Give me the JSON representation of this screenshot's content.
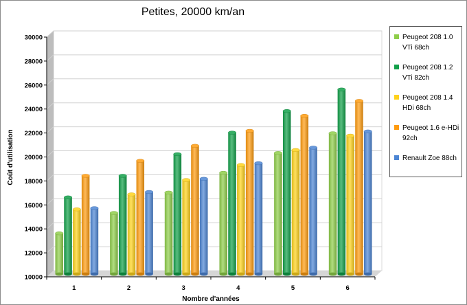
{
  "chart_data": {
    "type": "bar",
    "title": "Petites, 20000 km/an",
    "xlabel": "Nombre d'années",
    "ylabel": "Coût d'utilisation",
    "categories": [
      "1",
      "2",
      "3",
      "4",
      "5",
      "6"
    ],
    "ylim": [
      10000,
      30000
    ],
    "yticks": [
      "10000",
      "12000",
      "14000",
      "16000",
      "18000",
      "20000",
      "22000",
      "24000",
      "26000",
      "28000",
      "30000"
    ],
    "grid": true,
    "legend_position": "right",
    "series": [
      {
        "name": "Peugeot 208 1.0 VTi 68ch",
        "color": "#8fce4a",
        "values": [
          13400,
          15100,
          16800,
          18450,
          20100,
          21750
        ]
      },
      {
        "name": "Peugeot 208 1.2 VTi 82ch",
        "color": "#12a04a",
        "values": [
          16400,
          18200,
          20000,
          21800,
          23600,
          25400
        ]
      },
      {
        "name": "Peugeot 208 1.4 HDi 68ch",
        "color": "#ffd21c",
        "values": [
          15400,
          16650,
          17850,
          19100,
          20350,
          21550
        ]
      },
      {
        "name": "Peugeot 1.6 e-HDi 92ch",
        "color": "#ff9c10",
        "values": [
          18200,
          19450,
          20700,
          21950,
          23200,
          24450
        ]
      },
      {
        "name": "Renault Zoe 88ch",
        "color": "#4d86d4",
        "values": [
          15500,
          16850,
          17950,
          19250,
          20550,
          21900
        ]
      }
    ]
  }
}
